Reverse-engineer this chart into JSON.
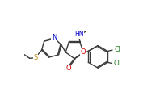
{
  "bg_color": "#ffffff",
  "bond_color": "#3a3a3a",
  "atom_colors": {
    "N": "#0000cc",
    "O": "#cc0000",
    "S": "#b8860b",
    "Cl": "#1a7a1a",
    "C": "#3a3a3a"
  },
  "line_width": 1.0,
  "font_size": 6.0
}
